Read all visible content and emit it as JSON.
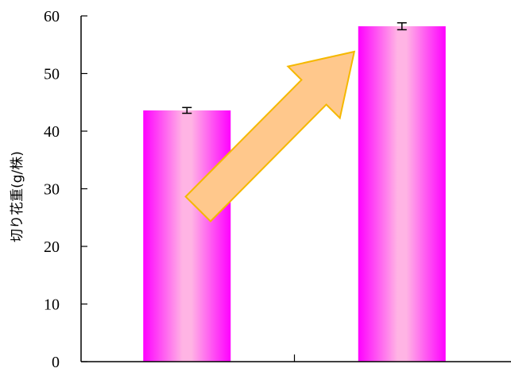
{
  "chart_data": {
    "type": "bar",
    "title": "",
    "xlabel": "",
    "ylabel": "切り花重(g/株)",
    "ylim": [
      0,
      60
    ],
    "yticks": [
      0,
      10,
      20,
      30,
      40,
      50,
      60
    ],
    "categories": [
      "",
      ""
    ],
    "series": [
      {
        "values": [
          43.6,
          58.2
        ],
        "errors": [
          0.5,
          0.6
        ]
      }
    ],
    "grid": false,
    "legend": "none",
    "annotations": [
      {
        "type": "arrow",
        "from_category": 0,
        "to_category": 1,
        "color": "#FFC88C",
        "stroke": "#F5B800"
      }
    ]
  },
  "colors": {
    "bar_edge": "#FF00FF",
    "bar_center": "#FFB4E4",
    "arrow_fill": "#FFC88C",
    "arrow_stroke": "#F5B800",
    "axis": "#000000"
  }
}
